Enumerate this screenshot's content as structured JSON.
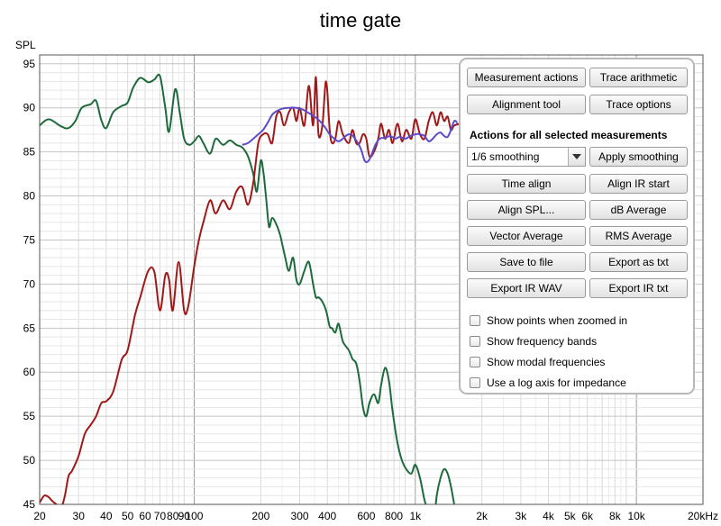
{
  "chart_data": {
    "type": "line",
    "title": "time gate",
    "ylabel": "SPL",
    "xlabel": "",
    "x_scale": "log",
    "xlim": [
      20,
      20000
    ],
    "ylim": [
      45,
      96
    ],
    "grid": true,
    "y_ticks": [
      45,
      50,
      55,
      60,
      65,
      70,
      75,
      80,
      85,
      90,
      95
    ],
    "x_ticks": [
      {
        "v": 20,
        "l": "20"
      },
      {
        "v": 30,
        "l": "30"
      },
      {
        "v": 40,
        "l": "40"
      },
      {
        "v": 50,
        "l": "50"
      },
      {
        "v": 60,
        "l": "60"
      },
      {
        "v": 70,
        "l": "70"
      },
      {
        "v": 80,
        "l": "80"
      },
      {
        "v": 90,
        "l": "90"
      },
      {
        "v": 100,
        "l": "100"
      },
      {
        "v": 200,
        "l": "200"
      },
      {
        "v": 300,
        "l": "300"
      },
      {
        "v": 400,
        "l": "400"
      },
      {
        "v": 600,
        "l": "600"
      },
      {
        "v": 800,
        "l": "800"
      },
      {
        "v": 1000,
        "l": "1k"
      },
      {
        "v": 2000,
        "l": "2k"
      },
      {
        "v": 3000,
        "l": "3k"
      },
      {
        "v": 4000,
        "l": "4k"
      },
      {
        "v": 5000,
        "l": "5k"
      },
      {
        "v": 6000,
        "l": "6k"
      },
      {
        "v": 8000,
        "l": "8k"
      },
      {
        "v": 10000,
        "l": "10k"
      },
      {
        "v": 20000,
        "l": "20kHz"
      }
    ],
    "series": [
      {
        "color": "#1e6a3c",
        "points": [
          [
            20,
            88
          ],
          [
            22,
            88.7
          ],
          [
            25,
            87.9
          ],
          [
            27,
            87.7
          ],
          [
            29,
            88.5
          ],
          [
            31,
            90
          ],
          [
            34,
            90.4
          ],
          [
            36,
            90.8
          ],
          [
            38,
            88.6
          ],
          [
            40,
            87.7
          ],
          [
            43,
            89.5
          ],
          [
            47,
            90.2
          ],
          [
            50,
            90.6
          ],
          [
            53,
            92.3
          ],
          [
            57,
            93.4
          ],
          [
            62,
            92.9
          ],
          [
            66,
            93.2
          ],
          [
            70,
            93.6
          ],
          [
            74,
            90
          ],
          [
            77,
            87.3
          ],
          [
            82,
            92.1
          ],
          [
            86,
            89.5
          ],
          [
            90,
            86.5
          ],
          [
            95,
            85.8
          ],
          [
            100,
            86.2
          ],
          [
            105,
            86.8
          ],
          [
            110,
            86
          ],
          [
            118,
            84.8
          ],
          [
            125,
            86.5
          ],
          [
            135,
            85.8
          ],
          [
            145,
            86.3
          ],
          [
            155,
            85.8
          ],
          [
            165,
            85.5
          ],
          [
            175,
            84.5
          ],
          [
            185,
            82.5
          ],
          [
            192,
            80.5
          ],
          [
            200,
            84
          ],
          [
            206,
            82.5
          ],
          [
            212,
            79.5
          ],
          [
            218,
            76.5
          ],
          [
            225,
            77.5
          ],
          [
            235,
            76.8
          ],
          [
            245,
            75.5
          ],
          [
            258,
            73
          ],
          [
            268,
            71.5
          ],
          [
            280,
            73
          ],
          [
            290,
            70.5
          ],
          [
            300,
            70
          ],
          [
            315,
            71.5
          ],
          [
            330,
            72.5
          ],
          [
            345,
            70
          ],
          [
            355,
            68.5
          ],
          [
            365,
            68.5
          ],
          [
            380,
            68
          ],
          [
            395,
            67
          ],
          [
            410,
            65.2
          ],
          [
            420,
            65
          ],
          [
            435,
            64.5
          ],
          [
            450,
            65.5
          ],
          [
            470,
            63.5
          ],
          [
            500,
            62.5
          ],
          [
            520,
            61.5
          ],
          [
            540,
            61
          ],
          [
            560,
            59
          ],
          [
            580,
            56
          ],
          [
            600,
            55
          ],
          [
            620,
            56.5
          ],
          [
            650,
            57.5
          ],
          [
            680,
            56.5
          ],
          [
            700,
            58.5
          ],
          [
            730,
            60.5
          ],
          [
            760,
            59
          ],
          [
            790,
            55.5
          ],
          [
            830,
            52
          ],
          [
            870,
            50
          ],
          [
            910,
            49
          ],
          [
            960,
            48.5
          ],
          [
            1000,
            49.5
          ],
          [
            1050,
            48
          ],
          [
            1100,
            45.5
          ],
          [
            1150,
            44
          ],
          [
            1200,
            42
          ],
          [
            1250,
            46
          ],
          [
            1300,
            48
          ],
          [
            1350,
            49
          ],
          [
            1400,
            48.5
          ],
          [
            1450,
            47
          ],
          [
            1500,
            45
          ]
        ]
      },
      {
        "color": "#a01818",
        "points": [
          [
            20,
            45.2
          ],
          [
            21,
            46
          ],
          [
            22,
            45.8
          ],
          [
            23,
            45.3
          ],
          [
            25,
            44.8
          ],
          [
            26,
            46
          ],
          [
            27,
            48.2
          ],
          [
            28,
            48.8
          ],
          [
            30,
            50.5
          ],
          [
            32,
            53
          ],
          [
            34,
            54
          ],
          [
            36,
            55
          ],
          [
            38,
            56.5
          ],
          [
            40,
            56.7
          ],
          [
            43,
            57.8
          ],
          [
            47,
            61.4
          ],
          [
            50,
            62.5
          ],
          [
            54,
            66.5
          ],
          [
            57,
            68.5
          ],
          [
            62,
            71.5
          ],
          [
            66,
            71.4
          ],
          [
            70,
            67
          ],
          [
            74,
            71
          ],
          [
            77,
            70.5
          ],
          [
            80,
            67
          ],
          [
            85,
            72.5
          ],
          [
            90,
            67
          ],
          [
            94,
            67.5
          ],
          [
            100,
            72
          ],
          [
            105,
            75
          ],
          [
            110,
            77
          ],
          [
            118,
            79.5
          ],
          [
            125,
            78
          ],
          [
            135,
            79.5
          ],
          [
            145,
            78.5
          ],
          [
            155,
            80.5
          ],
          [
            165,
            81
          ],
          [
            175,
            79
          ],
          [
            185,
            81.5
          ],
          [
            195,
            86
          ],
          [
            205,
            87
          ],
          [
            215,
            87
          ],
          [
            225,
            86
          ],
          [
            235,
            89
          ],
          [
            245,
            89.5
          ],
          [
            255,
            88
          ],
          [
            268,
            89.5
          ],
          [
            280,
            90
          ],
          [
            290,
            88.5
          ],
          [
            300,
            90
          ],
          [
            315,
            88
          ],
          [
            330,
            92.5
          ],
          [
            345,
            88
          ],
          [
            355,
            93.5
          ],
          [
            365,
            87
          ],
          [
            380,
            88
          ],
          [
            395,
            93
          ],
          [
            410,
            87.5
          ],
          [
            420,
            86
          ],
          [
            435,
            86.5
          ],
          [
            450,
            88.5
          ],
          [
            470,
            87
          ],
          [
            500,
            86
          ],
          [
            520,
            87.5
          ],
          [
            540,
            86
          ],
          [
            560,
            86
          ],
          [
            580,
            87
          ],
          [
            600,
            86.5
          ],
          [
            620,
            84.5
          ],
          [
            650,
            85
          ],
          [
            680,
            86.5
          ],
          [
            700,
            88.2
          ],
          [
            730,
            86.5
          ],
          [
            760,
            87.5
          ],
          [
            790,
            86
          ],
          [
            830,
            88.2
          ],
          [
            870,
            86.2
          ],
          [
            910,
            87.5
          ],
          [
            960,
            86.5
          ],
          [
            1000,
            88.7
          ],
          [
            1050,
            87
          ],
          [
            1100,
            86.5
          ],
          [
            1150,
            88.5
          ],
          [
            1200,
            89.5
          ],
          [
            1250,
            88
          ],
          [
            1300,
            89.5
          ],
          [
            1350,
            88.5
          ],
          [
            1400,
            89
          ],
          [
            1450,
            87.5
          ],
          [
            1500,
            88
          ],
          [
            1600,
            88.2
          ]
        ]
      },
      {
        "color": "#5a4ccc",
        "points": [
          [
            165,
            85.8
          ],
          [
            175,
            86
          ],
          [
            185,
            86.5
          ],
          [
            195,
            87
          ],
          [
            205,
            87.5
          ],
          [
            215,
            88.3
          ],
          [
            225,
            89.2
          ],
          [
            235,
            89.6
          ],
          [
            250,
            89.9
          ],
          [
            270,
            90
          ],
          [
            290,
            90
          ],
          [
            310,
            89.8
          ],
          [
            330,
            89.4
          ],
          [
            350,
            89
          ],
          [
            370,
            88.5
          ],
          [
            390,
            87.8
          ],
          [
            410,
            87
          ],
          [
            430,
            86.5
          ],
          [
            450,
            86.2
          ],
          [
            470,
            86.5
          ],
          [
            490,
            86.9
          ],
          [
            510,
            87
          ],
          [
            530,
            86.6
          ],
          [
            550,
            86
          ],
          [
            570,
            85.2
          ],
          [
            590,
            84
          ],
          [
            610,
            83.9
          ],
          [
            630,
            84.5
          ],
          [
            660,
            85.8
          ],
          [
            690,
            86.5
          ],
          [
            730,
            86.6
          ],
          [
            770,
            86.8
          ],
          [
            810,
            86.5
          ],
          [
            850,
            86.7
          ],
          [
            900,
            86.5
          ],
          [
            950,
            86.8
          ],
          [
            1000,
            87
          ],
          [
            1050,
            87
          ],
          [
            1100,
            86.8
          ],
          [
            1150,
            86.2
          ],
          [
            1200,
            86.5
          ],
          [
            1250,
            87
          ],
          [
            1300,
            87.2
          ],
          [
            1350,
            86.8
          ],
          [
            1400,
            86.7
          ],
          [
            1450,
            87.5
          ],
          [
            1500,
            88.5
          ],
          [
            1550,
            88.3
          ]
        ]
      }
    ],
    "right_series_visible": [
      {
        "color": "#e8b4b8",
        "points": [
          [
            20000,
            85.5
          ],
          [
            19500,
            85.9
          ]
        ]
      },
      {
        "color": "#b8b4e8",
        "points": [
          [
            20000,
            85.5
          ],
          [
            19500,
            85.3
          ]
        ]
      }
    ]
  },
  "panel": {
    "buttons": [
      {
        "label": "Measurement actions",
        "name": "measurement-actions-button"
      },
      {
        "label": "Trace arithmetic",
        "name": "trace-arithmetic-button"
      },
      {
        "label": "Alignment tool",
        "name": "alignment-tool-button"
      },
      {
        "label": "Trace options",
        "name": "trace-options-button"
      }
    ],
    "section_title": "Actions for all selected measurements",
    "smoothing_value": "1/6 smoothing",
    "apply_smoothing": "Apply smoothing",
    "actions": [
      {
        "label": "Time align",
        "name": "time-align-button"
      },
      {
        "label": "Align IR start",
        "name": "align-ir-start-button"
      },
      {
        "label": "Align SPL...",
        "name": "align-spl-button"
      },
      {
        "label": "dB Average",
        "name": "db-average-button"
      },
      {
        "label": "Vector Average",
        "name": "vector-average-button"
      },
      {
        "label": "RMS Average",
        "name": "rms-average-button"
      },
      {
        "label": "Save to file",
        "name": "save-to-file-button"
      },
      {
        "label": "Export as txt",
        "name": "export-as-txt-button"
      },
      {
        "label": "Export IR WAV",
        "name": "export-ir-wav-button"
      },
      {
        "label": "Export IR txt",
        "name": "export-ir-txt-button"
      }
    ],
    "checkboxes": [
      {
        "label": "Show points when zoomed in",
        "checked": false
      },
      {
        "label": "Show frequency bands",
        "checked": false
      },
      {
        "label": "Show modal frequencies",
        "checked": false
      },
      {
        "label": "Use a log axis for impedance",
        "checked": false
      }
    ]
  }
}
